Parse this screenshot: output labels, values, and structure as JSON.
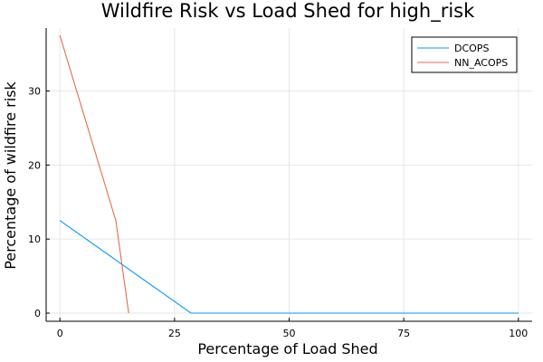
{
  "chart_data": {
    "type": "line",
    "title": "Wildfire Risk vs Load Shed for high_risk",
    "xlabel": "Percentage of Load Shed",
    "ylabel": "Percentage of wildfire risk",
    "xlim": [
      -3,
      103
    ],
    "ylim": [
      -1.1,
      38.5
    ],
    "xticks": [
      0,
      25,
      50,
      75,
      100
    ],
    "yticks": [
      0,
      10,
      20,
      30
    ],
    "grid": true,
    "legend_position": "top-right",
    "series": [
      {
        "name": "DCOPS",
        "color": "#009af9",
        "x": [
          0,
          28.6,
          100
        ],
        "y": [
          12.5,
          0,
          0
        ]
      },
      {
        "name": "NN_ACOPS",
        "color": "#e26f46",
        "x": [
          0,
          12.2,
          15.0
        ],
        "y": [
          37.5,
          12.5,
          0
        ]
      }
    ]
  }
}
